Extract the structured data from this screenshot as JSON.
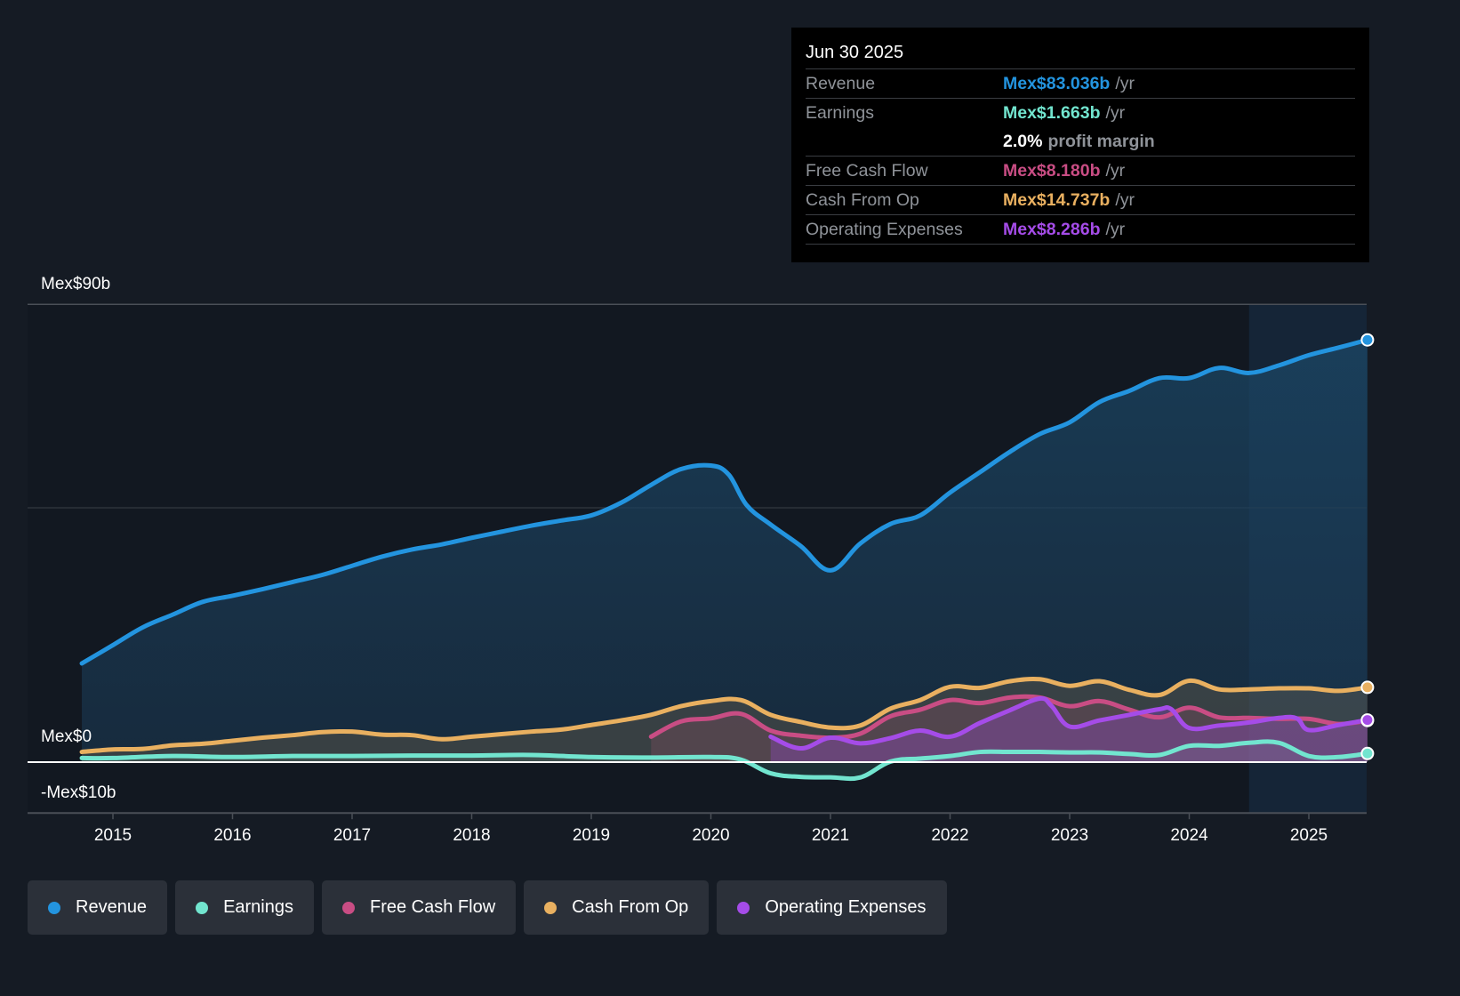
{
  "tooltip": {
    "date": "Jun 30 2025",
    "rows": [
      {
        "label": "Revenue",
        "value": "Mex$83.036b",
        "unit": "/yr",
        "color": "#2394df"
      },
      {
        "label": "Earnings",
        "value": "Mex$1.663b",
        "unit": "/yr",
        "color": "#72e5cf"
      },
      {
        "label": "",
        "value": "2.0%",
        "unit": "profit margin"
      },
      {
        "label": "Free Cash Flow",
        "value": "Mex$8.180b",
        "unit": "/yr",
        "color": "#c94d84"
      },
      {
        "label": "Cash From Op",
        "value": "Mex$14.737b",
        "unit": "/yr",
        "color": "#e9b060"
      },
      {
        "label": "Operating Expenses",
        "value": "Mex$8.286b",
        "unit": "/yr",
        "color": "#a54ce8"
      }
    ]
  },
  "legend": [
    {
      "label": "Revenue",
      "color": "#2394df"
    },
    {
      "label": "Earnings",
      "color": "#72e5cf"
    },
    {
      "label": "Free Cash Flow",
      "color": "#c94d84"
    },
    {
      "label": "Cash From Op",
      "color": "#e9b060"
    },
    {
      "label": "Operating Expenses",
      "color": "#a54ce8"
    }
  ],
  "chart_data": {
    "type": "area",
    "title": "",
    "xlabel": "",
    "ylabel": "",
    "y_unit": "Mex$ billions",
    "ylim": [
      -10,
      90
    ],
    "xlim": [
      2014.75,
      2025.5
    ],
    "y_tick_labels": [
      {
        "value": 90,
        "label": "Mex$90b"
      },
      {
        "value": 0,
        "label": "Mex$0"
      },
      {
        "value": -10,
        "label": "-Mex$10b"
      }
    ],
    "y_gridlines": [
      90,
      50,
      0,
      -10
    ],
    "x_tick_labels": [
      "2015",
      "2016",
      "2017",
      "2018",
      "2019",
      "2020",
      "2021",
      "2022",
      "2023",
      "2024",
      "2025"
    ],
    "x_ticks": [
      2015,
      2016,
      2017,
      2018,
      2019,
      2020,
      2021,
      2022,
      2023,
      2024,
      2025
    ],
    "forecast_shade_start": 2024.5,
    "grid": true,
    "legend_position": "bottom-left",
    "series": [
      {
        "name": "Revenue",
        "color": "#2394df",
        "x": [
          2014.74,
          2015.0,
          2015.25,
          2015.5,
          2015.75,
          2016.0,
          2016.25,
          2016.5,
          2016.75,
          2017.0,
          2017.25,
          2017.5,
          2017.75,
          2018.0,
          2018.25,
          2018.5,
          2018.75,
          2019.0,
          2019.25,
          2019.5,
          2019.75,
          2020.0,
          2020.15,
          2020.3,
          2020.5,
          2020.75,
          2021.0,
          2021.25,
          2021.5,
          2021.75,
          2022.0,
          2022.25,
          2022.5,
          2022.75,
          2023.0,
          2023.25,
          2023.5,
          2023.75,
          2024.0,
          2024.25,
          2024.5,
          2024.75,
          2025.0,
          2025.25,
          2025.49
        ],
        "values": [
          19.4,
          23.0,
          26.5,
          29.0,
          31.5,
          32.7,
          34.0,
          35.4,
          36.8,
          38.6,
          40.4,
          41.8,
          42.8,
          44.1,
          45.3,
          46.5,
          47.5,
          48.5,
          51.0,
          54.5,
          57.6,
          58.3,
          56.5,
          50.5,
          46.7,
          42.5,
          37.7,
          43.0,
          46.8,
          48.5,
          53.0,
          57.0,
          61.0,
          64.5,
          66.8,
          70.8,
          73.0,
          75.5,
          75.5,
          77.5,
          76.5,
          78.0,
          80.0,
          81.5,
          83.0
        ]
      },
      {
        "name": "Earnings",
        "color": "#72e5cf",
        "x": [
          2014.74,
          2015.0,
          2015.5,
          2016.0,
          2016.5,
          2017.0,
          2017.5,
          2018.0,
          2018.5,
          2019.0,
          2019.5,
          2020.0,
          2020.25,
          2020.5,
          2020.75,
          2021.0,
          2021.25,
          2021.5,
          2021.75,
          2022.0,
          2022.25,
          2022.5,
          2022.75,
          2023.0,
          2023.25,
          2023.5,
          2023.75,
          2024.0,
          2024.25,
          2024.5,
          2024.75,
          2025.0,
          2025.25,
          2025.49
        ],
        "values": [
          0.8,
          0.8,
          1.2,
          1.0,
          1.2,
          1.2,
          1.3,
          1.3,
          1.4,
          1.0,
          0.9,
          1.0,
          0.5,
          -2.2,
          -2.9,
          -3.0,
          -3.0,
          0.1,
          0.7,
          1.2,
          2.0,
          2.0,
          2.0,
          1.9,
          1.9,
          1.6,
          1.4,
          3.2,
          3.2,
          3.8,
          3.8,
          1.2,
          1.0,
          1.7
        ]
      },
      {
        "name": "Free Cash Flow",
        "color": "#c94d84",
        "x": [
          2019.5,
          2019.75,
          2020.0,
          2020.25,
          2020.5,
          2020.75,
          2021.0,
          2021.25,
          2021.5,
          2021.75,
          2022.0,
          2022.25,
          2022.5,
          2022.75,
          2023.0,
          2023.25,
          2023.5,
          2023.75,
          2024.0,
          2024.25,
          2024.5,
          2024.75,
          2025.0,
          2025.25,
          2025.49
        ],
        "values": [
          5.0,
          8.0,
          8.6,
          9.5,
          6.2,
          5.2,
          4.8,
          5.6,
          9.0,
          10.3,
          12.2,
          11.6,
          12.7,
          12.7,
          11.0,
          12.0,
          10.3,
          8.8,
          10.7,
          8.8,
          8.7,
          8.5,
          8.5,
          7.5,
          8.18
        ]
      },
      {
        "name": "Cash From Op",
        "color": "#e9b060",
        "x": [
          2014.74,
          2015.0,
          2015.25,
          2015.5,
          2015.75,
          2016.0,
          2016.25,
          2016.5,
          2016.75,
          2017.0,
          2017.25,
          2017.5,
          2017.75,
          2018.0,
          2018.25,
          2018.5,
          2018.75,
          2019.0,
          2019.25,
          2019.5,
          2019.75,
          2020.0,
          2020.25,
          2020.5,
          2020.75,
          2021.0,
          2021.25,
          2021.5,
          2021.75,
          2022.0,
          2022.25,
          2022.5,
          2022.75,
          2023.0,
          2023.25,
          2023.5,
          2023.75,
          2024.0,
          2024.25,
          2024.5,
          2024.75,
          2025.0,
          2025.25,
          2025.49
        ],
        "values": [
          2.0,
          2.5,
          2.6,
          3.3,
          3.6,
          4.2,
          4.8,
          5.3,
          5.9,
          6.0,
          5.4,
          5.3,
          4.5,
          5.0,
          5.5,
          6.0,
          6.4,
          7.3,
          8.2,
          9.3,
          11.0,
          12.0,
          12.2,
          9.3,
          7.9,
          6.8,
          7.2,
          10.5,
          12.2,
          14.8,
          14.6,
          15.9,
          16.3,
          15.0,
          15.9,
          14.2,
          13.2,
          16.0,
          14.3,
          14.3,
          14.5,
          14.5,
          14.0,
          14.7
        ]
      },
      {
        "name": "Operating Expenses",
        "color": "#a54ce8",
        "x": [
          2020.5,
          2020.75,
          2021.0,
          2021.25,
          2021.5,
          2021.75,
          2022.0,
          2022.25,
          2022.5,
          2022.75,
          2022.85,
          2023.0,
          2023.25,
          2023.5,
          2023.75,
          2023.85,
          2024.0,
          2024.25,
          2024.5,
          2024.75,
          2024.9,
          2025.0,
          2025.25,
          2025.49
        ],
        "values": [
          5.0,
          2.7,
          4.8,
          3.7,
          4.7,
          6.2,
          5.0,
          7.7,
          10.2,
          12.5,
          11.0,
          7.0,
          8.2,
          9.3,
          10.4,
          10.4,
          6.7,
          7.2,
          7.8,
          8.7,
          8.6,
          6.3,
          7.3,
          8.29
        ]
      }
    ]
  }
}
